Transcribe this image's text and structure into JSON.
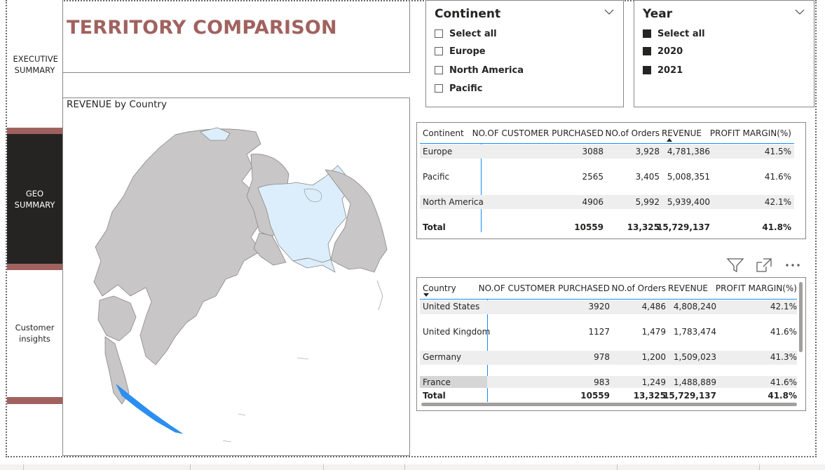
{
  "nav": {
    "items": [
      {
        "label": "EXECUTIVE SUMMARY"
      },
      {
        "label": "GEO SUMMARY"
      },
      {
        "label": "Customer insights"
      }
    ]
  },
  "page": {
    "title": "TERRITORY COMPARISON"
  },
  "map": {
    "title": "REVENUE by Country"
  },
  "continent_slicer": {
    "title": "Continent",
    "options": [
      {
        "label": "Select all",
        "checked": false
      },
      {
        "label": "Europe",
        "checked": false
      },
      {
        "label": "North America",
        "checked": false
      },
      {
        "label": "Pacific",
        "checked": false
      }
    ]
  },
  "year_slicer": {
    "title": "Year",
    "options": [
      {
        "label": "Select all",
        "checked": true
      },
      {
        "label": "2020",
        "checked": true
      },
      {
        "label": "2021",
        "checked": true
      }
    ]
  },
  "continent_table": {
    "headers": [
      "Continent",
      "NO.OF CUSTOMER PURCHASED",
      "NO.of Orders",
      "REVENUE",
      "PROFIT MARGIN(%)"
    ],
    "rows": [
      [
        "Europe",
        "3088",
        "3,928",
        "4,781,386",
        "41.5%"
      ],
      [
        "Pacific",
        "2565",
        "3,405",
        "5,008,351",
        "41.6%"
      ],
      [
        "North America",
        "4906",
        "5,992",
        "5,939,400",
        "42.1%"
      ]
    ],
    "total": [
      "Total",
      "10559",
      "13,325",
      "15,729,137",
      "41.8%"
    ]
  },
  "country_table": {
    "headers": [
      "Country",
      "NO.OF CUSTOMER PURCHASED",
      "NO.of Orders",
      "REVENUE",
      "PROFIT MARGIN(%)"
    ],
    "rows": [
      [
        "United States",
        "3920",
        "4,486",
        "4,808,240",
        "42.1%"
      ],
      [
        "United Kingdom",
        "1127",
        "1,479",
        "1,783,474",
        "41.6%"
      ],
      [
        "Germany",
        "978",
        "1,200",
        "1,509,023",
        "41.3%"
      ],
      [
        "France",
        "983",
        "1,249",
        "1,488,889",
        "41.6%"
      ]
    ],
    "total": [
      "Total",
      "10559",
      "13,325",
      "15,729,137",
      "41.8%"
    ]
  },
  "visual_header": {
    "icons": [
      "filter-icon",
      "focus-mode-icon",
      "more-options-icon"
    ]
  },
  "colors": {
    "accent": "#a0625f",
    "nav_active": "#252423",
    "map_land": "#c8c6c6",
    "map_highlight": "#dceefc",
    "map_selected": "#2b8ef0",
    "row_band": "#eeeeee"
  }
}
